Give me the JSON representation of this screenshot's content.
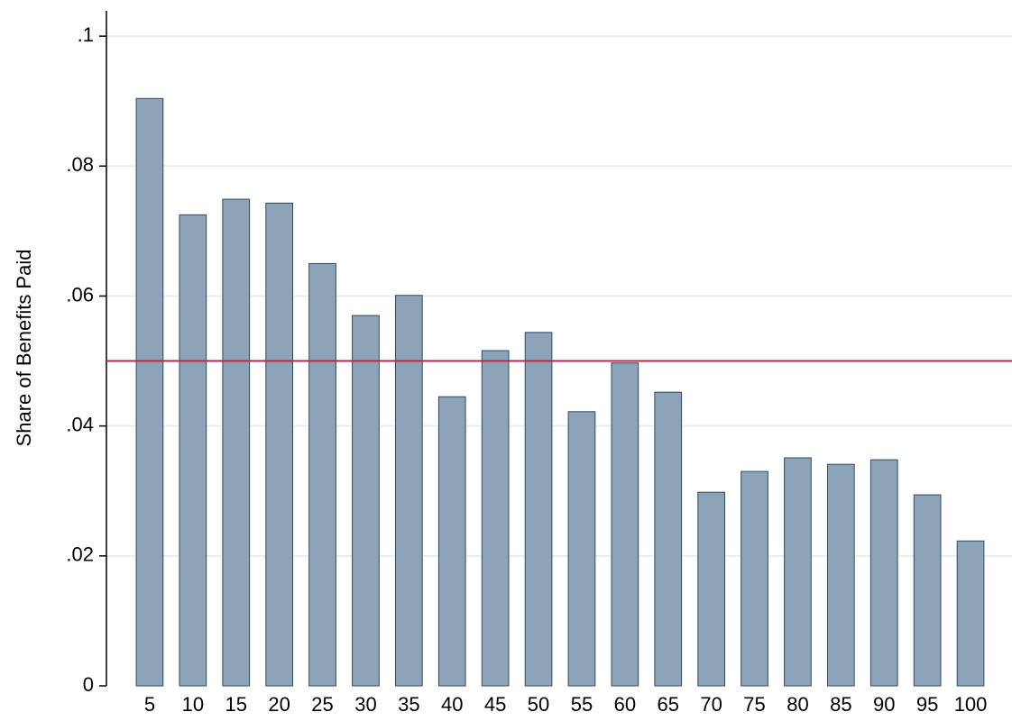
{
  "chart_data": {
    "type": "bar",
    "y_label": "Share of Benefits Paid",
    "categories": [
      "5",
      "10",
      "15",
      "20",
      "25",
      "30",
      "35",
      "40",
      "45",
      "50",
      "55",
      "60",
      "65",
      "70",
      "75",
      "80",
      "85",
      "90",
      "95",
      "100"
    ],
    "values": [
      0.0904,
      0.0725,
      0.0749,
      0.0743,
      0.065,
      0.057,
      0.0601,
      0.0445,
      0.0516,
      0.0544,
      0.0422,
      0.0497,
      0.0452,
      0.0298,
      0.033,
      0.0351,
      0.0341,
      0.0348,
      0.0294,
      0.0223
    ],
    "color": "#8da3b8",
    "edge_color": "#2f4a63",
    "ylim": [
      0,
      0.1039
    ],
    "yticks": [
      0,
      {
        "value": 0.02,
        "label": ".02"
      },
      {
        "value": 0.04,
        "label": ".04"
      },
      {
        "value": 0.06,
        "label": ".06"
      },
      {
        "value": 0.08,
        "label": ".08"
      },
      {
        "value": 0.1,
        "label": ".1"
      }
    ],
    "grid": true,
    "reference_line": {
      "value": 0.05,
      "color": "#b22a4a"
    }
  }
}
